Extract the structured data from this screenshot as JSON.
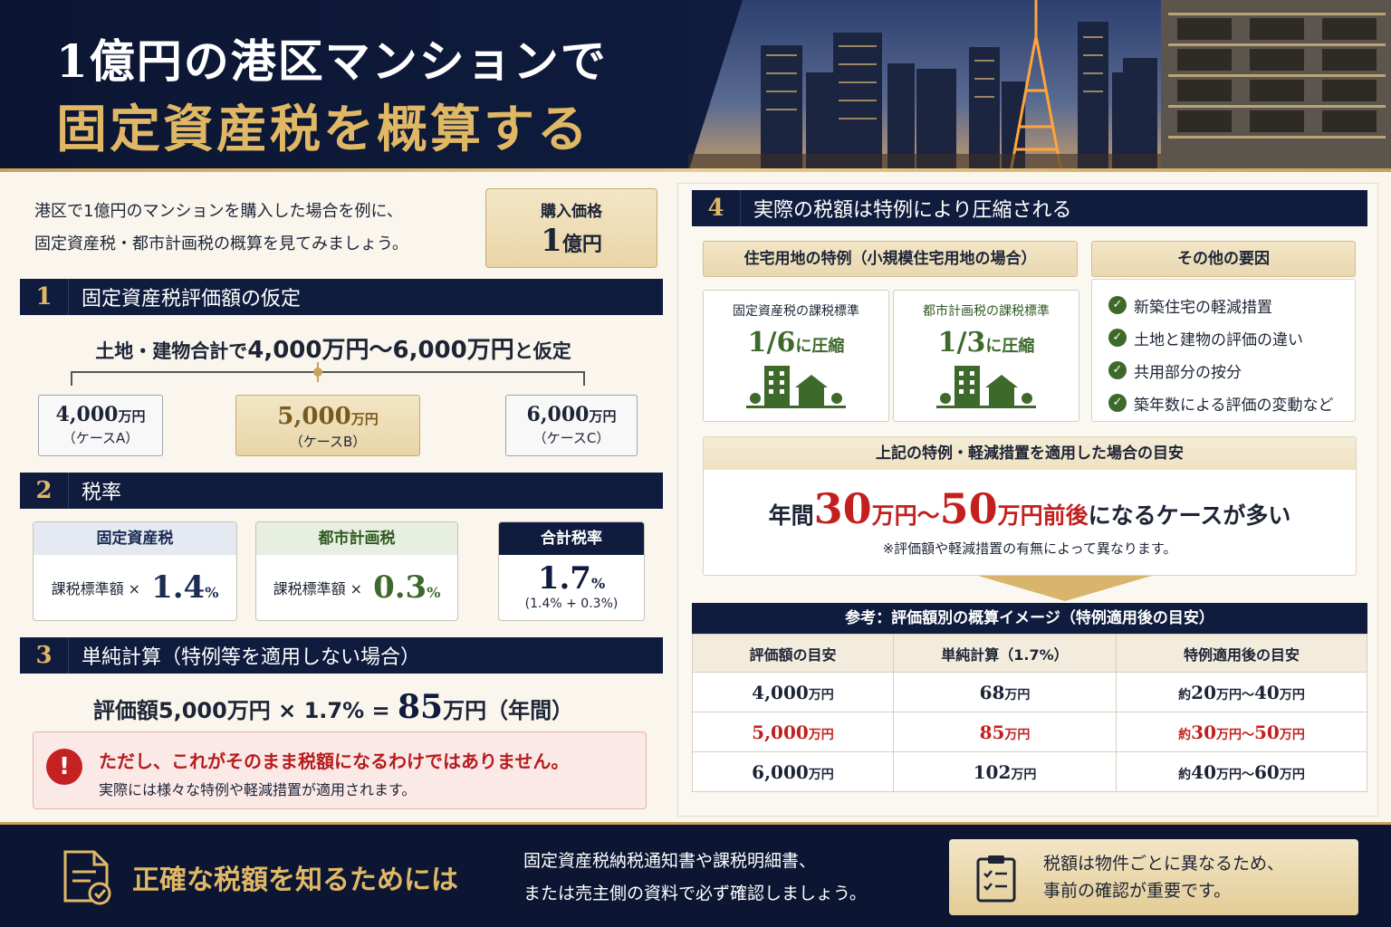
{
  "header": {
    "title_line1": "1億円の港区マンションで",
    "title_line2": "固定資産税を概算する"
  },
  "intro": {
    "line1": "港区で1億円のマンションを購入した場合を例に、",
    "line2": "固定資産税・都市計画税の概算を見てみましょう。"
  },
  "price": {
    "label": "購入価格",
    "value": "1",
    "unit": "億円"
  },
  "sec1": {
    "num": "1",
    "title": "固定資産税評価額の仮定",
    "lead_pre": "土地・建物合計で",
    "lead_range": "4,000万円〜6,000万円",
    "lead_post": "と仮定",
    "cases": [
      {
        "value": "4,000",
        "unit": "万円",
        "label": "（ケースA）"
      },
      {
        "value": "5,000",
        "unit": "万円",
        "label": "（ケースB）"
      },
      {
        "value": "6,000",
        "unit": "万円",
        "label": "（ケースC）"
      }
    ]
  },
  "sec2": {
    "num": "2",
    "title": "税率",
    "fixed": {
      "label": "固定資産税",
      "formula": "課税標準額 ×",
      "rate": "1.4",
      "unit": "%"
    },
    "city": {
      "label": "都市計画税",
      "formula": "課税標準額 ×",
      "rate": "0.3",
      "unit": "%"
    },
    "total": {
      "label": "合計税率",
      "rate": "1.7",
      "unit": "%",
      "note": "(1.4% + 0.3%)"
    }
  },
  "sec3": {
    "num": "3",
    "title": "単純計算（特例等を適用しない場合）",
    "calc_pre": "評価額5,000万円 × 1.7% =",
    "result": "85",
    "result_unit": "万円（年間）",
    "warn_title": "ただし、これがそのまま税額になるわけではありません。",
    "warn_text": "実際には様々な特例や軽減措置が適用されます。"
  },
  "sec4": {
    "num": "4",
    "title": "実際の税額は特例により圧縮される",
    "special_title": "住宅用地の特例（小規模住宅用地の場合）",
    "fixed_std": {
      "label": "固定資産税の課税標準",
      "value": "1/6",
      "suffix": "に圧縮"
    },
    "city_std": {
      "label": "都市計画税の課税標準",
      "value": "1/3",
      "suffix": "に圧縮"
    },
    "other_title": "その他の要因",
    "others": [
      "新築住宅の軽減措置",
      "土地と建物の評価の違い",
      "共用部分の按分",
      "築年数による評価の変動など"
    ],
    "est_title": "上記の特例・軽減措置を適用した場合の目安",
    "est_pre": "年間",
    "est_a": "30",
    "est_mid": "万円〜",
    "est_b": "50",
    "est_post1": "万円前後",
    "est_post2": "になるケースが多い",
    "est_note": "※評価額や軽減措置の有無によって異なります。"
  },
  "ref": {
    "title": "参考：評価額別の概算イメージ（特例適用後の目安）",
    "headers": [
      "評価額の目安",
      "単純計算（1.7%）",
      "特例適用後の目安"
    ],
    "rows": [
      {
        "a": "4,000",
        "b": "68",
        "c1": "約",
        "c2": "20",
        "c3": "40"
      },
      {
        "a": "5,000",
        "b": "85",
        "c1": "約",
        "c2": "30",
        "c3": "50"
      },
      {
        "a": "6,000",
        "b": "102",
        "c1": "約",
        "c2": "40",
        "c3": "60"
      }
    ],
    "unit": "万円",
    "tilde": "〜"
  },
  "footer": {
    "title": "正確な税額を知るためには",
    "desc1": "固定資産税納税通知書や課税明細書、",
    "desc2": "または売主側の資料で必ず確認しましょう。",
    "note1": "税額は物件ごとに異なるため、",
    "note2": "事前の確認が重要です。"
  },
  "colors": {
    "navy": "#0f1c3e",
    "gold": "#e0b865",
    "red": "#c41f1f",
    "green": "#3d6a2b"
  }
}
